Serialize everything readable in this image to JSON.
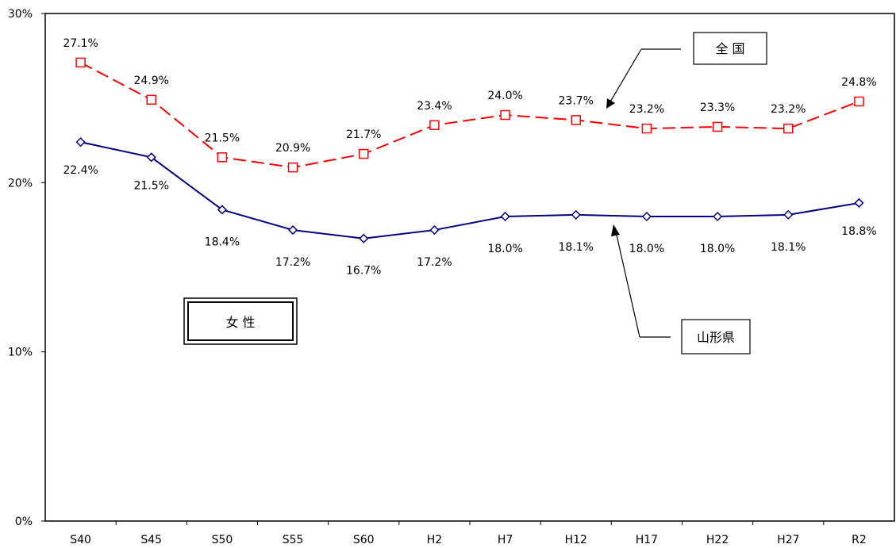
{
  "chart_data": {
    "type": "line",
    "categories": [
      "S40",
      "S45",
      "S50",
      "S55",
      "S60",
      "H2",
      "H7",
      "H12",
      "H17",
      "H22",
      "H27",
      "R2"
    ],
    "ylim": [
      0,
      30
    ],
    "yticks": [
      "0%",
      "10%",
      "20%",
      "30%"
    ],
    "series": [
      {
        "name": "全 国",
        "values": [
          27.1,
          24.9,
          21.5,
          20.9,
          21.7,
          23.4,
          24.0,
          23.7,
          23.2,
          23.3,
          23.2,
          24.8
        ],
        "labels": [
          "27.1%",
          "24.9%",
          "21.5%",
          "20.9%",
          "21.7%",
          "23.4%",
          "24.0%",
          "23.7%",
          "23.2%",
          "23.3%",
          "23.2%",
          "24.8%"
        ],
        "color": "#ff0000",
        "line_style": "dashed",
        "marker": "square"
      },
      {
        "name": "山形県",
        "values": [
          22.4,
          21.5,
          18.4,
          17.2,
          16.7,
          17.2,
          18.0,
          18.1,
          18.0,
          18.0,
          18.1,
          18.8
        ],
        "labels": [
          "22.4%",
          "21.5%",
          "18.4%",
          "17.2%",
          "16.7%",
          "17.2%",
          "18.0%",
          "18.1%",
          "18.0%",
          "18.0%",
          "18.1%",
          "18.8%"
        ],
        "color": "#000080",
        "line_style": "solid",
        "marker": "diamond"
      }
    ],
    "annotation": "女 性",
    "grid": false
  }
}
